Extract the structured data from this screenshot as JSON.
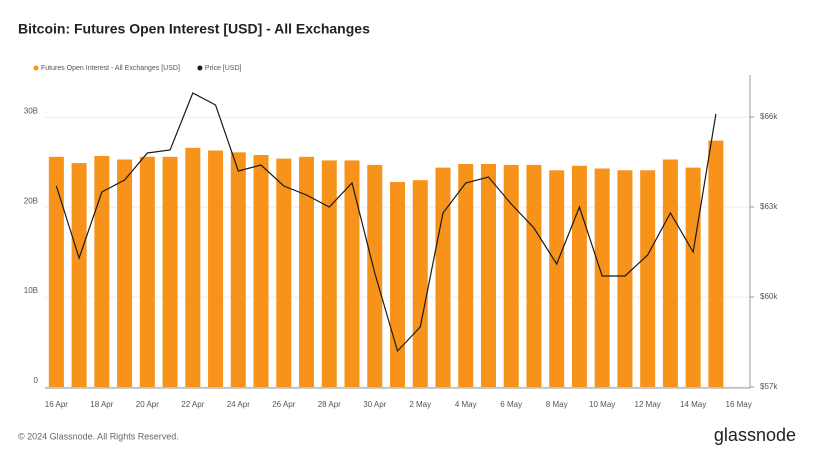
{
  "chart_data": {
    "type": "bar_line",
    "title": "Bitcoin: Futures Open Interest [USD] - All Exchanges",
    "categories": [
      "16 Apr",
      null,
      "18 Apr",
      null,
      "20 Apr",
      null,
      "22 Apr",
      null,
      "24 Apr",
      null,
      "26 Apr",
      null,
      "28 Apr",
      null,
      "30 Apr",
      null,
      "2 May",
      null,
      "4 May",
      null,
      "6 May",
      null,
      "8 May",
      null,
      "10 May",
      null,
      "12 May",
      null,
      "14 May",
      null,
      "16 May"
    ],
    "series": [
      {
        "name": "Futures Open Interest - All Exchanges [USD]",
        "color": "#f7931a",
        "kind": "bar",
        "values": [
          25600000000,
          24900000000,
          25700000000,
          25300000000,
          25600000000,
          25600000000,
          26600000000,
          26300000000,
          26100000000,
          25800000000,
          25400000000,
          25600000000,
          25200000000,
          25200000000,
          24700000000,
          22800000000,
          23000000000,
          24400000000,
          24800000000,
          24800000000,
          24700000000,
          24700000000,
          24100000000,
          24600000000,
          24300000000,
          24100000000,
          24100000000,
          25300000000,
          24400000000,
          27400000000,
          null
        ]
      },
      {
        "name": "Price [USD]",
        "color": "#1a1a1a",
        "kind": "line",
        "axis": "y2",
        "values": [
          63700,
          61300,
          63500,
          63900,
          64800,
          64900,
          66800,
          66400,
          64200,
          64400,
          63700,
          63400,
          63000,
          63800,
          60800,
          58200,
          59000,
          62800,
          63800,
          64000,
          63100,
          62300,
          61100,
          63000,
          60700,
          60700,
          61400,
          62800,
          61500,
          66100,
          null
        ]
      }
    ],
    "ylim": [
      0,
      34700000000
    ],
    "yticks": [
      {
        "value": 0,
        "label": "0"
      },
      {
        "value": 10000000000,
        "label": "10B"
      },
      {
        "value": 20000000000,
        "label": "20B"
      },
      {
        "value": 30000000000,
        "label": "30B"
      }
    ],
    "y2lim": [
      57000,
      67400
    ],
    "y2ticks": [
      {
        "value": 57000,
        "label": "$57k"
      },
      {
        "value": 60000,
        "label": "$60k"
      },
      {
        "value": 63000,
        "label": "$63k"
      },
      {
        "value": 66000,
        "label": "$66k"
      }
    ],
    "grid": true,
    "legend": "top-left",
    "footer": "© 2024 Glassnode. All Rights Reserved.",
    "brand": "glassnode"
  }
}
